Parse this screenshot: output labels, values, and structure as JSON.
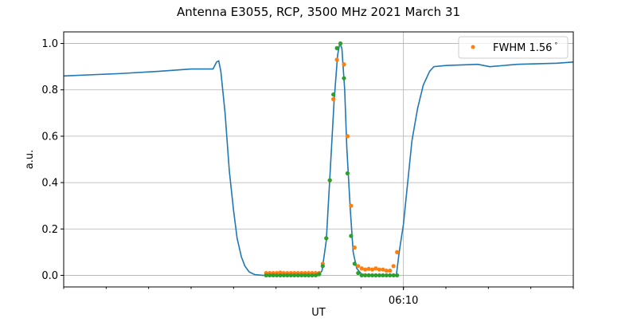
{
  "chart_data": {
    "type": "line",
    "title": "Antenna E3055, RCP, 3500 MHz 2021 March 31",
    "xlabel": "UT",
    "ylabel": "a.u.",
    "xlim": [
      "06:02:00",
      "06:14:00"
    ],
    "ylim": [
      -0.05,
      1.05
    ],
    "x_major_ticks": [
      {
        "time": "06:10:00",
        "label": "06:10"
      }
    ],
    "x_minor_tick_interval": "1 min",
    "yticks": [
      0.0,
      0.2,
      0.4,
      0.6,
      0.8,
      1.0
    ],
    "ytick_labels": [
      "0.0",
      "0.2",
      "0.4",
      "0.6",
      "0.8",
      "1.0"
    ],
    "grid": "on",
    "legend": {
      "placement": "top-right",
      "entries": [
        "FWHM 1.56$^\\circ$"
      ],
      "display": [
        "FWHM 1.56",
        "°"
      ]
    },
    "colors": {
      "line": "#1f77b4",
      "orange": "#ff7f0e",
      "green": "#2ca02c"
    },
    "series": [
      {
        "style": "line",
        "color": "#1f77b4",
        "x": [
          "06:02:00",
          "06:03:18",
          "06:04:15",
          "06:05:00",
          "06:05:31",
          "06:05:36",
          "06:05:39",
          "06:05:42",
          "06:05:48",
          "06:05:54",
          "06:06:00",
          "06:06:05",
          "06:06:11",
          "06:06:16",
          "06:06:22",
          "06:06:30",
          "06:06:41",
          "06:08:00",
          "06:08:05",
          "06:08:11",
          "06:08:16",
          "06:08:22",
          "06:08:27",
          "06:08:30",
          "06:08:33",
          "06:08:37",
          "06:08:40",
          "06:08:45",
          "06:08:49",
          "06:08:54",
          "06:09:01",
          "06:09:18",
          "06:09:50",
          "06:09:54",
          "06:10:00",
          "06:10:06",
          "06:10:12",
          "06:10:20",
          "06:10:28",
          "06:10:37",
          "06:10:43",
          "06:11:00",
          "06:11:45",
          "06:12:02",
          "06:12:41",
          "06:13:37",
          "06:14:00"
        ],
        "y": [
          0.86,
          0.87,
          0.88,
          0.89,
          0.89,
          0.92,
          0.925,
          0.88,
          0.7,
          0.45,
          0.28,
          0.16,
          0.08,
          0.04,
          0.015,
          0.003,
          0.0,
          0.0,
          0.02,
          0.15,
          0.42,
          0.75,
          0.95,
          1.0,
          0.98,
          0.8,
          0.55,
          0.28,
          0.1,
          0.03,
          0.005,
          0.0,
          0.0,
          0.1,
          0.22,
          0.4,
          0.58,
          0.72,
          0.82,
          0.88,
          0.9,
          0.905,
          0.91,
          0.9,
          0.91,
          0.915,
          0.92
        ]
      },
      {
        "name": "FWHM 1.56°",
        "style": "points",
        "color": "#ff7f0e",
        "x": [
          "06:06:46",
          "06:06:51",
          "06:06:56",
          "06:07:01",
          "06:07:06",
          "06:07:11",
          "06:07:16",
          "06:07:21",
          "06:07:26",
          "06:07:31",
          "06:07:36",
          "06:07:41",
          "06:07:46",
          "06:07:51",
          "06:07:56",
          "06:08:01",
          "06:08:06",
          "06:08:11",
          "06:08:16",
          "06:08:21",
          "06:08:26",
          "06:08:31",
          "06:08:36",
          "06:08:41",
          "06:08:46",
          "06:08:51",
          "06:08:56",
          "06:09:01",
          "06:09:06",
          "06:09:11",
          "06:09:16",
          "06:09:21",
          "06:09:26",
          "06:09:31",
          "06:09:36",
          "06:09:41",
          "06:09:46",
          "06:09:51"
        ],
        "y": [
          0.01,
          0.01,
          0.01,
          0.01,
          0.012,
          0.01,
          0.01,
          0.01,
          0.01,
          0.01,
          0.01,
          0.01,
          0.01,
          0.01,
          0.01,
          0.01,
          0.05,
          0.16,
          0.41,
          0.76,
          0.93,
          1.0,
          0.91,
          0.6,
          0.3,
          0.12,
          0.04,
          0.03,
          0.025,
          0.028,
          0.025,
          0.03,
          0.025,
          0.025,
          0.02,
          0.02,
          0.04,
          0.1
        ]
      },
      {
        "style": "points",
        "color": "#2ca02c",
        "x": [
          "06:06:46",
          "06:06:51",
          "06:06:56",
          "06:07:01",
          "06:07:06",
          "06:07:11",
          "06:07:16",
          "06:07:21",
          "06:07:26",
          "06:07:31",
          "06:07:36",
          "06:07:41",
          "06:07:46",
          "06:07:51",
          "06:07:56",
          "06:08:01",
          "06:08:06",
          "06:08:11",
          "06:08:16",
          "06:08:21",
          "06:08:26",
          "06:08:31",
          "06:08:36",
          "06:08:41",
          "06:08:46",
          "06:08:51",
          "06:08:56",
          "06:09:01",
          "06:09:06",
          "06:09:11",
          "06:09:16",
          "06:09:21",
          "06:09:26",
          "06:09:31",
          "06:09:36",
          "06:09:41",
          "06:09:46",
          "06:09:51"
        ],
        "y": [
          0.0,
          0.0,
          0.0,
          0.0,
          0.0,
          0.0,
          0.0,
          0.0,
          0.0,
          0.0,
          0.0,
          0.0,
          0.0,
          0.0,
          0.0,
          0.005,
          0.04,
          0.16,
          0.41,
          0.78,
          0.98,
          1.0,
          0.85,
          0.44,
          0.17,
          0.05,
          0.01,
          0.0,
          0.0,
          0.0,
          0.0,
          0.0,
          0.0,
          0.0,
          0.0,
          0.0,
          0.0,
          0.0
        ]
      }
    ]
  }
}
